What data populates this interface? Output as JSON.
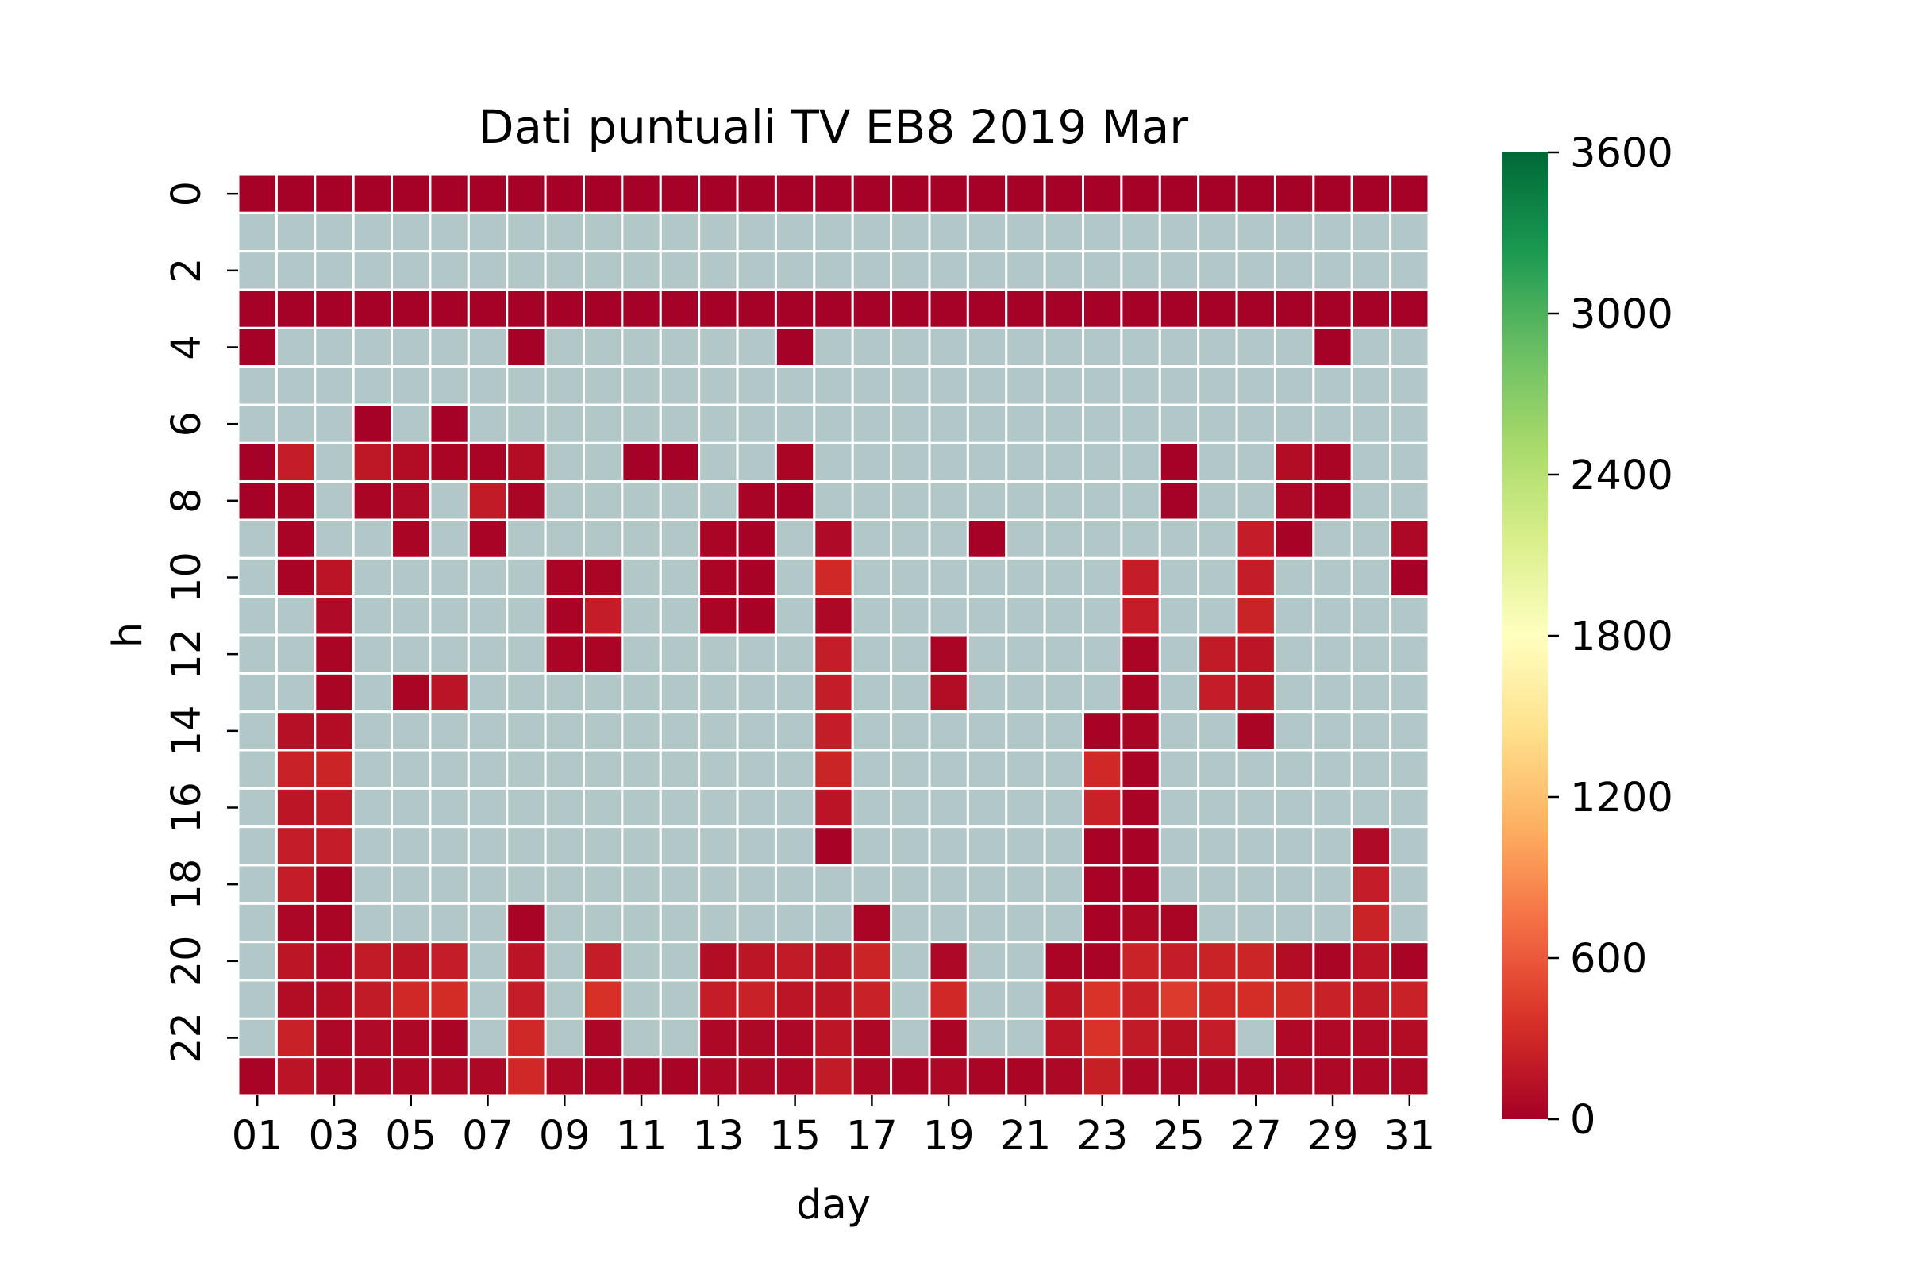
{
  "chart_data": {
    "type": "heatmap",
    "title": "Dati puntuali TV EB8 2019 Mar",
    "xlabel": "day",
    "ylabel": "h",
    "x_categories": [
      "01",
      "02",
      "03",
      "04",
      "05",
      "06",
      "07",
      "08",
      "09",
      "10",
      "11",
      "12",
      "13",
      "14",
      "15",
      "16",
      "17",
      "18",
      "19",
      "20",
      "21",
      "22",
      "23",
      "24",
      "25",
      "26",
      "27",
      "28",
      "29",
      "30",
      "31"
    ],
    "x_tick_labels": [
      "01",
      "03",
      "05",
      "07",
      "09",
      "11",
      "13",
      "15",
      "17",
      "19",
      "21",
      "23",
      "25",
      "27",
      "29",
      "31"
    ],
    "y_categories": [
      0,
      1,
      2,
      3,
      4,
      5,
      6,
      7,
      8,
      9,
      10,
      11,
      12,
      13,
      14,
      15,
      16,
      17,
      18,
      19,
      20,
      21,
      22,
      23
    ],
    "y_tick_labels": [
      "0",
      "2",
      "4",
      "6",
      "8",
      "10",
      "12",
      "14",
      "16",
      "18",
      "20",
      "22"
    ],
    "color_scale": {
      "name": "RdYlGn",
      "min": 0,
      "max": 3600,
      "ticks": [
        "0",
        "600",
        "1200",
        "1800",
        "2400",
        "3000",
        "3600"
      ],
      "stops": [
        "#a50026",
        "#d73027",
        "#f46d43",
        "#fdae61",
        "#fee08b",
        "#ffffbf",
        "#d9ef8b",
        "#a6d96a",
        "#66bd63",
        "#1a9850",
        "#006837"
      ]
    },
    "missing_color": "#b2c8c8",
    "grid_line_color": "#ffffff",
    "values": [
      [
        10,
        10,
        10,
        10,
        10,
        10,
        10,
        10,
        10,
        10,
        10,
        10,
        10,
        10,
        10,
        10,
        10,
        10,
        10,
        10,
        10,
        10,
        10,
        10,
        10,
        10,
        10,
        10,
        10,
        10,
        10
      ],
      [
        null,
        null,
        null,
        null,
        null,
        null,
        null,
        null,
        null,
        null,
        null,
        null,
        null,
        null,
        null,
        null,
        null,
        null,
        null,
        null,
        null,
        null,
        null,
        null,
        null,
        null,
        null,
        null,
        null,
        null,
        null
      ],
      [
        null,
        null,
        null,
        null,
        null,
        null,
        null,
        null,
        null,
        null,
        null,
        null,
        null,
        null,
        null,
        null,
        null,
        null,
        null,
        null,
        null,
        null,
        null,
        null,
        null,
        null,
        null,
        null,
        null,
        null,
        null
      ],
      [
        10,
        10,
        10,
        10,
        10,
        10,
        10,
        10,
        10,
        10,
        10,
        10,
        10,
        10,
        10,
        10,
        10,
        10,
        10,
        10,
        10,
        10,
        10,
        10,
        10,
        10,
        10,
        10,
        10,
        10,
        10
      ],
      [
        10,
        null,
        null,
        null,
        null,
        null,
        null,
        10,
        null,
        null,
        null,
        null,
        null,
        null,
        10,
        null,
        null,
        null,
        null,
        null,
        null,
        null,
        null,
        null,
        null,
        null,
        null,
        null,
        10,
        null,
        null
      ],
      [
        null,
        null,
        null,
        null,
        null,
        null,
        null,
        null,
        null,
        null,
        null,
        null,
        null,
        null,
        null,
        null,
        null,
        null,
        null,
        null,
        null,
        null,
        null,
        null,
        null,
        null,
        null,
        null,
        null,
        null,
        null
      ],
      [
        null,
        null,
        null,
        10,
        null,
        10,
        null,
        null,
        null,
        null,
        null,
        null,
        null,
        null,
        null,
        null,
        null,
        null,
        null,
        null,
        null,
        null,
        null,
        null,
        null,
        null,
        null,
        null,
        null,
        null,
        null
      ],
      [
        10,
        220,
        null,
        180,
        100,
        40,
        30,
        100,
        null,
        null,
        10,
        10,
        null,
        null,
        40,
        null,
        null,
        null,
        null,
        null,
        null,
        null,
        null,
        null,
        10,
        null,
        null,
        100,
        40,
        null,
        null
      ],
      [
        10,
        40,
        null,
        40,
        80,
        null,
        200,
        40,
        null,
        null,
        null,
        null,
        null,
        30,
        10,
        null,
        null,
        null,
        null,
        null,
        null,
        null,
        null,
        null,
        10,
        null,
        null,
        60,
        30,
        null,
        null
      ],
      [
        null,
        30,
        null,
        null,
        40,
        null,
        30,
        null,
        null,
        null,
        null,
        null,
        40,
        20,
        null,
        80,
        null,
        null,
        null,
        10,
        null,
        null,
        null,
        null,
        null,
        null,
        220,
        20,
        null,
        null,
        60
      ],
      [
        null,
        30,
        150,
        null,
        null,
        null,
        null,
        null,
        40,
        40,
        null,
        null,
        40,
        20,
        null,
        300,
        null,
        null,
        null,
        null,
        null,
        null,
        null,
        220,
        null,
        null,
        220,
        null,
        null,
        null,
        10
      ],
      [
        null,
        null,
        80,
        null,
        null,
        null,
        null,
        null,
        30,
        220,
        null,
        null,
        40,
        20,
        null,
        60,
        null,
        null,
        null,
        null,
        null,
        null,
        null,
        220,
        null,
        null,
        260,
        null,
        null,
        null,
        null
      ],
      [
        null,
        null,
        40,
        null,
        null,
        null,
        null,
        null,
        40,
        40,
        null,
        null,
        null,
        null,
        null,
        220,
        null,
        null,
        40,
        null,
        null,
        null,
        null,
        40,
        null,
        200,
        160,
        null,
        null,
        null,
        null
      ],
      [
        null,
        null,
        40,
        null,
        40,
        150,
        null,
        null,
        null,
        null,
        null,
        null,
        null,
        null,
        null,
        220,
        null,
        null,
        100,
        null,
        null,
        null,
        null,
        40,
        null,
        220,
        160,
        null,
        null,
        null,
        null
      ],
      [
        null,
        120,
        100,
        null,
        null,
        null,
        null,
        null,
        null,
        null,
        null,
        null,
        null,
        null,
        null,
        220,
        null,
        null,
        null,
        null,
        null,
        null,
        20,
        40,
        null,
        null,
        40,
        null,
        null,
        null,
        null
      ],
      [
        null,
        250,
        270,
        null,
        null,
        null,
        null,
        null,
        null,
        null,
        null,
        null,
        null,
        null,
        null,
        270,
        null,
        null,
        null,
        null,
        null,
        null,
        300,
        30,
        null,
        null,
        null,
        null,
        null,
        null,
        null
      ],
      [
        null,
        160,
        200,
        null,
        null,
        null,
        null,
        null,
        null,
        null,
        null,
        null,
        null,
        null,
        null,
        150,
        null,
        null,
        null,
        null,
        null,
        null,
        250,
        30,
        null,
        null,
        null,
        null,
        null,
        null,
        null
      ],
      [
        null,
        220,
        220,
        null,
        null,
        null,
        null,
        null,
        null,
        null,
        null,
        null,
        null,
        null,
        null,
        20,
        null,
        null,
        null,
        null,
        null,
        null,
        20,
        20,
        null,
        null,
        null,
        null,
        null,
        80,
        null
      ],
      [
        null,
        220,
        40,
        null,
        null,
        null,
        null,
        null,
        null,
        null,
        null,
        null,
        null,
        null,
        null,
        null,
        null,
        null,
        null,
        null,
        null,
        null,
        20,
        20,
        null,
        null,
        null,
        null,
        null,
        220,
        null
      ],
      [
        null,
        50,
        40,
        null,
        null,
        null,
        null,
        30,
        null,
        null,
        null,
        null,
        null,
        null,
        null,
        null,
        40,
        null,
        null,
        null,
        null,
        null,
        20,
        60,
        40,
        null,
        null,
        null,
        null,
        260,
        null
      ],
      [
        null,
        160,
        70,
        200,
        160,
        220,
        null,
        150,
        null,
        220,
        null,
        null,
        100,
        160,
        200,
        160,
        270,
        null,
        60,
        null,
        null,
        40,
        30,
        260,
        220,
        260,
        280,
        100,
        40,
        150,
        30
      ],
      [
        null,
        100,
        100,
        200,
        300,
        330,
        null,
        220,
        null,
        360,
        null,
        null,
        220,
        250,
        160,
        160,
        250,
        null,
        300,
        null,
        null,
        160,
        380,
        250,
        420,
        300,
        340,
        320,
        250,
        200,
        250
      ],
      [
        null,
        250,
        60,
        80,
        60,
        40,
        null,
        300,
        null,
        50,
        null,
        null,
        60,
        60,
        60,
        160,
        60,
        null,
        40,
        null,
        null,
        150,
        380,
        200,
        130,
        220,
        null,
        70,
        70,
        80,
        100
      ],
      [
        30,
        150,
        60,
        60,
        60,
        60,
        60,
        300,
        60,
        40,
        30,
        30,
        60,
        60,
        60,
        200,
        60,
        40,
        60,
        40,
        40,
        60,
        240,
        60,
        60,
        60,
        60,
        60,
        60,
        60,
        60
      ]
    ]
  }
}
